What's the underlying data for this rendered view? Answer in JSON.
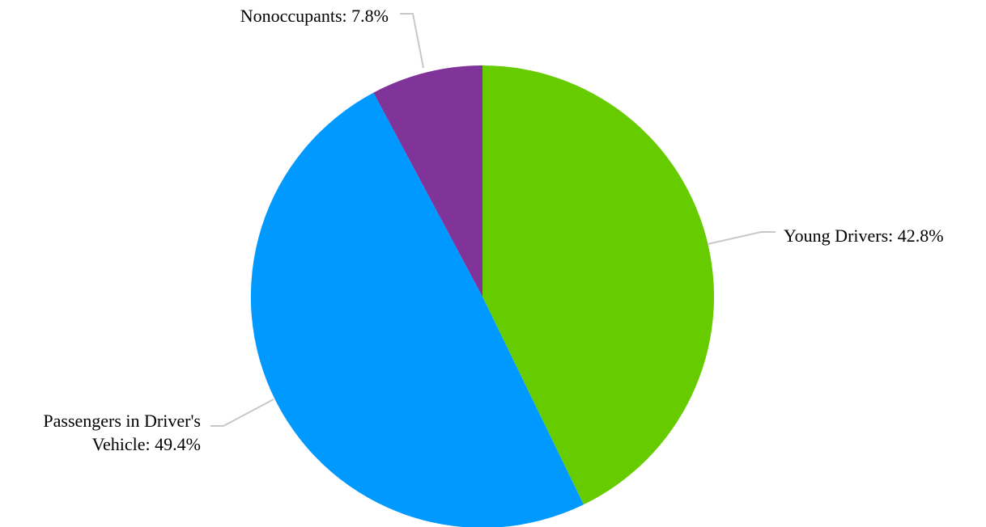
{
  "chart_data": {
    "type": "pie",
    "title": "",
    "slices": [
      {
        "label": "Young Drivers",
        "value": 42.8,
        "color": "#66cc00",
        "display": "Young Drivers: 42.8%"
      },
      {
        "label": "Passengers in Driver's Vehicle",
        "value": 49.4,
        "color": "#0099ff",
        "display_lines": [
          "Passengers in Driver's",
          "Vehicle: 49.4%"
        ]
      },
      {
        "label": "Nonoccupants",
        "value": 7.8,
        "color": "#803399",
        "display": "Nonoccupants: 7.8%"
      }
    ],
    "legend": "none",
    "start_angle": "12 o'clock",
    "direction": "clockwise"
  }
}
